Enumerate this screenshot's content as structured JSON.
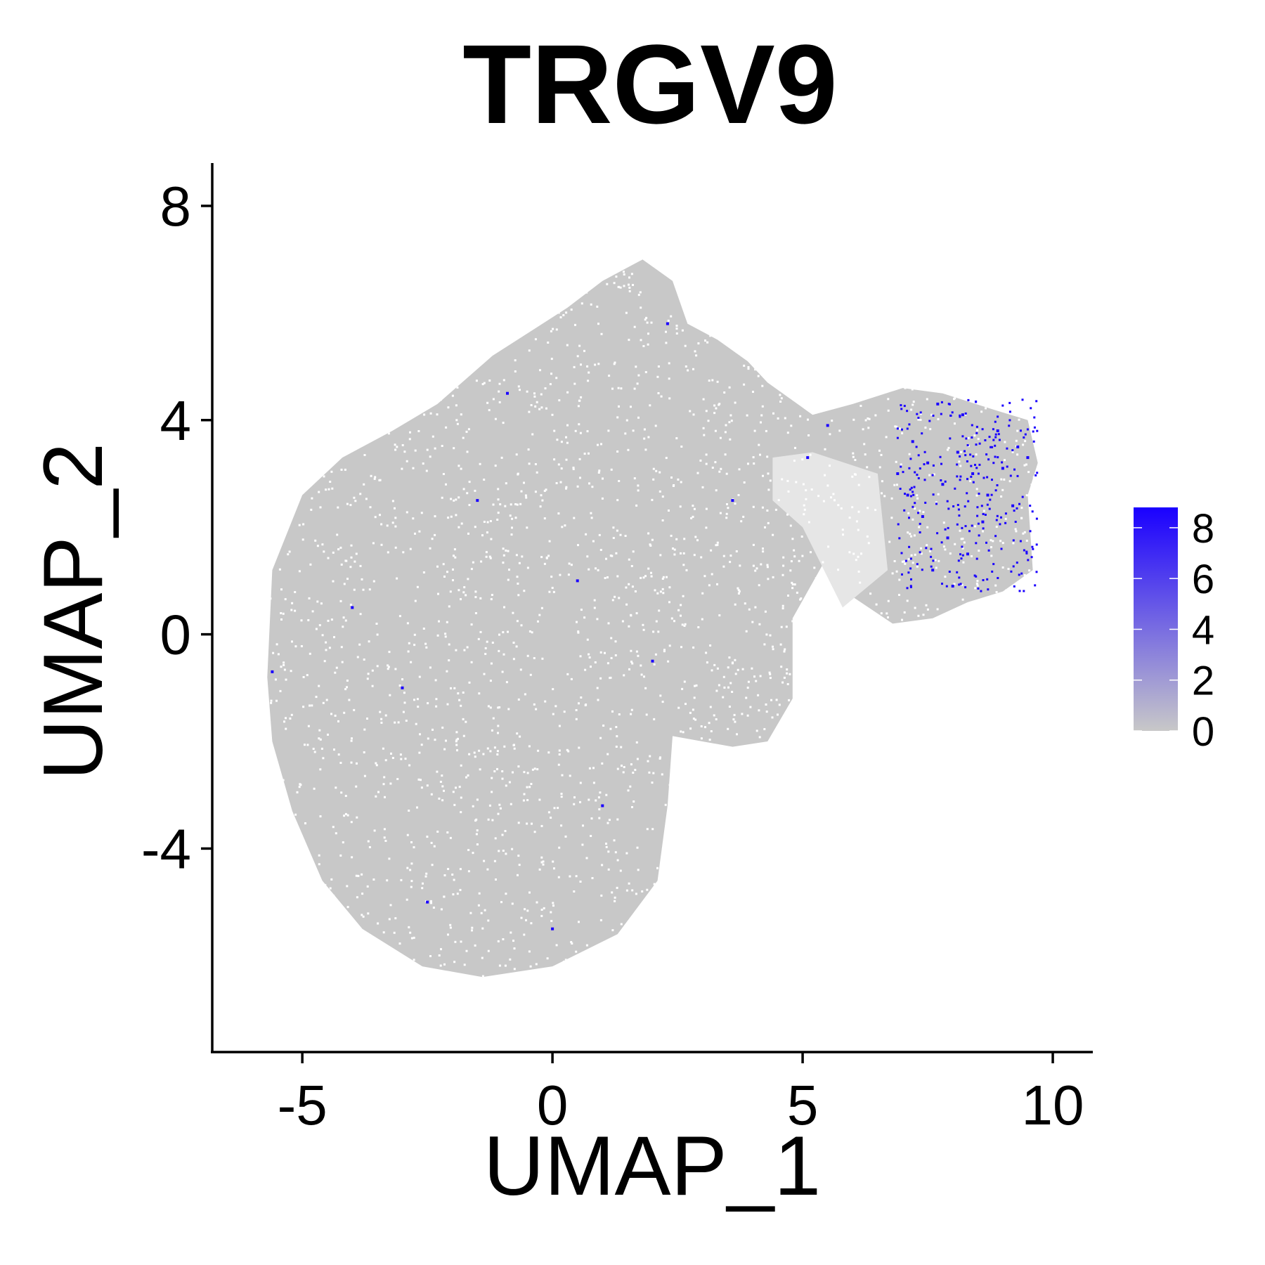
{
  "chart_data": {
    "type": "scatter",
    "title": "TRGV9",
    "xlabel": "UMAP_1",
    "ylabel": "UMAP_2",
    "xlim": [
      -6.8,
      10.8
    ],
    "ylim": [
      -7.8,
      8.8
    ],
    "x_ticks": [
      -5,
      0,
      5,
      10
    ],
    "y_ticks": [
      -4,
      0,
      4,
      8
    ],
    "grid": false,
    "legend": {
      "type": "colorbar",
      "placement": "right",
      "ticks": [
        0,
        2,
        4,
        6,
        8
      ],
      "range": [
        0,
        8.8
      ],
      "low_color": "#c8c8c8",
      "high_color": "#1a00ff"
    },
    "colors": {
      "background_cells": "#c8c8c8",
      "expressing_cells": "#1a00ff",
      "axis": "#000000"
    },
    "series": [
      {
        "values_description_free": true,
        "clusters": [
          {
            "region": "main",
            "points": [
              [
                -5.5,
                -0.5
              ],
              [
                -5.2,
                2.0
              ],
              [
                -4.5,
                -4.5
              ],
              [
                -3.5,
                -5.8
              ],
              [
                -2,
                -6.5
              ],
              [
                0,
                -6.2
              ],
              [
                1.5,
                -5.0
              ],
              [
                2.2,
                -3.0
              ],
              [
                2.5,
                0.0
              ],
              [
                2.0,
                3.5
              ],
              [
                1.5,
                6.5
              ],
              [
                0.0,
                4.5
              ],
              [
                -2,
                3.5
              ],
              [
                -4,
                2.5
              ],
              [
                -1,
                -2
              ],
              [
                0,
                0
              ],
              [
                1,
                2
              ],
              [
                -3,
                0
              ],
              [
                -2,
                -4
              ],
              [
                0.5,
                -3.5
              ],
              [
                3.0,
                4.5
              ],
              [
                3.8,
                4.8
              ],
              [
                4.5,
                -1.0
              ],
              [
                3.5,
                1.5
              ]
            ]
          },
          {
            "region": "cluster",
            "points": [
              [
                7.0,
                3.5
              ],
              [
                8.0,
                3.0
              ],
              [
                9.0,
                3.3
              ],
              [
                9.5,
                3.8
              ],
              [
                8.5,
                2.2
              ],
              [
                7.5,
                1.5
              ],
              [
                7.8,
                0.8
              ],
              [
                8.8,
                1.2
              ],
              [
                6.8,
                2.5
              ],
              [
                9.3,
                2.0
              ]
            ]
          }
        ],
        "expressing_points": [
          [
            7.2,
            3.6
          ],
          [
            7.5,
            3.2
          ],
          [
            7.8,
            2.8
          ],
          [
            8.1,
            3.4
          ],
          [
            8.4,
            3.0
          ],
          [
            8.7,
            2.6
          ],
          [
            9.0,
            3.1
          ],
          [
            9.3,
            3.5
          ],
          [
            7.4,
            2.2
          ],
          [
            7.9,
            1.8
          ],
          [
            8.3,
            1.5
          ],
          [
            8.6,
            2.1
          ],
          [
            7.6,
            1.2
          ],
          [
            8.0,
            0.9
          ],
          [
            9.2,
            2.4
          ],
          [
            9.5,
            3.3
          ],
          [
            6.9,
            3.0
          ],
          [
            7.1,
            2.6
          ],
          [
            8.9,
            3.8
          ],
          [
            8.2,
            4.1
          ],
          [
            7.7,
            4.3
          ],
          [
            5.5,
            3.9
          ],
          [
            5.1,
            3.3
          ],
          [
            -4.0,
            0.5
          ],
          [
            -3.0,
            -1.0
          ],
          [
            -1.5,
            2.5
          ],
          [
            0.5,
            1.0
          ],
          [
            2.0,
            -0.5
          ],
          [
            -2.5,
            -5.0
          ],
          [
            0.0,
            -5.5
          ],
          [
            1.0,
            -3.2
          ],
          [
            -0.9,
            4.5
          ],
          [
            2.3,
            5.8
          ],
          [
            3.6,
            2.5
          ],
          [
            -5.6,
            -0.7
          ]
        ]
      }
    ]
  }
}
